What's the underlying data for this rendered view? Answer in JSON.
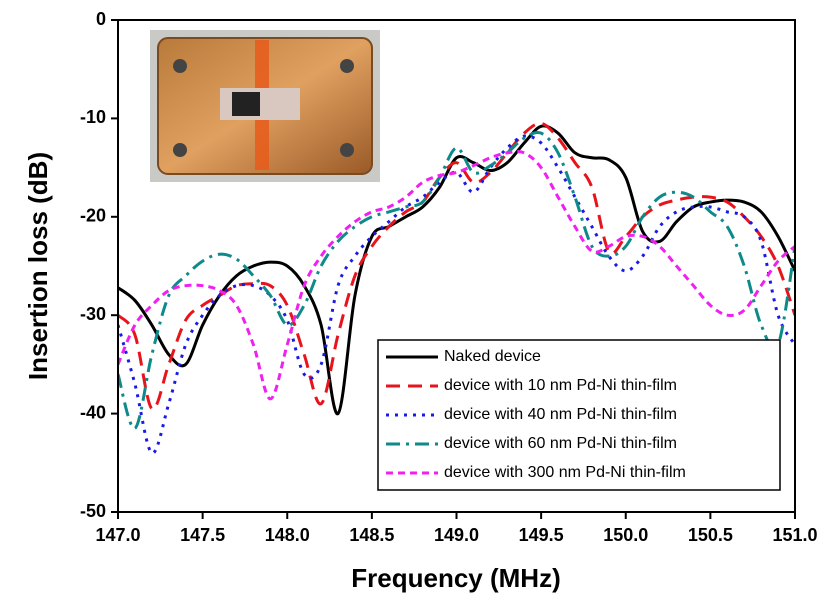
{
  "chart_data": {
    "type": "line",
    "xlabel": "Frequency (MHz)",
    "ylabel": "Insertion loss (dB)",
    "x": [
      147.0,
      147.1,
      147.2,
      147.3,
      147.4,
      147.5,
      147.6,
      147.7,
      147.8,
      147.9,
      148.0,
      148.1,
      148.2,
      148.3,
      148.4,
      148.5,
      148.6,
      148.7,
      148.8,
      148.9,
      149.0,
      149.1,
      149.2,
      149.3,
      149.4,
      149.5,
      149.6,
      149.7,
      149.8,
      149.9,
      150.0,
      150.1,
      150.2,
      150.3,
      150.4,
      150.5,
      150.6,
      150.7,
      150.8,
      150.9,
      151.0
    ],
    "series": [
      {
        "name": "Naked device",
        "color": "#000000",
        "linestyle": "solid",
        "values": [
          -27.2,
          -28.5,
          -31,
          -34,
          -35,
          -31,
          -28,
          -26,
          -25,
          -24.6,
          -25,
          -27,
          -31,
          -40,
          -28,
          -22,
          -21,
          -20,
          -19,
          -17,
          -14,
          -14.5,
          -15.3,
          -14.5,
          -12.5,
          -10.8,
          -11.5,
          -13.5,
          -14,
          -14.2,
          -16,
          -21.5,
          -22.5,
          -20.5,
          -19,
          -18.5,
          -18.3,
          -18.5,
          -19.5,
          -22,
          -25.5
        ]
      },
      {
        "name": "device with 10 nm Pd-Ni thin-film",
        "color": "#e8141c",
        "linestyle": "dash",
        "values": [
          -30,
          -32,
          -39.5,
          -35,
          -30.5,
          -29,
          -28,
          -27,
          -26.8,
          -27,
          -29,
          -34,
          -39,
          -32,
          -26,
          -23,
          -21,
          -19.5,
          -18.5,
          -16,
          -14.5,
          -16.5,
          -15.5,
          -13.5,
          -11.5,
          -10.5,
          -12,
          -14.5,
          -17,
          -23.5,
          -22,
          -20,
          -18.8,
          -18.3,
          -18,
          -18,
          -18.5,
          -20,
          -22,
          -25,
          -30
        ]
      },
      {
        "name": "device with 40 nm Pd-Ni thin-film",
        "color": "#1a1ae6",
        "linestyle": "dot",
        "values": [
          -31,
          -37,
          -44,
          -39,
          -33,
          -30,
          -28,
          -27,
          -27,
          -28,
          -30.5,
          -36,
          -35,
          -27,
          -24,
          -22,
          -20.5,
          -19,
          -18,
          -16.5,
          -15.5,
          -17.5,
          -15,
          -13,
          -11.8,
          -12.5,
          -15,
          -18,
          -21,
          -24,
          -25.5,
          -24,
          -21,
          -19.5,
          -19,
          -19,
          -19.5,
          -20,
          -22.5,
          -30,
          -33
        ]
      },
      {
        "name": "device with 60 nm Pd-Ni thin-film",
        "color": "#0e8a8a",
        "linestyle": "dashdot",
        "values": [
          -36,
          -41.5,
          -34,
          -28,
          -26,
          -24.5,
          -23.8,
          -24.3,
          -26,
          -28,
          -31,
          -29,
          -25,
          -22.5,
          -21,
          -20,
          -19.5,
          -19,
          -18.5,
          -16,
          -13,
          -15.5,
          -14.8,
          -13.5,
          -12,
          -11.5,
          -13.5,
          -18,
          -23,
          -24,
          -23,
          -20,
          -18,
          -17.5,
          -18,
          -19.5,
          -21,
          -25,
          -31,
          -33,
          -23
        ]
      },
      {
        "name": "device with 300 nm Pd-Ni thin-film",
        "color": "#f020f0",
        "linestyle": "shortdash",
        "values": [
          -35,
          -31,
          -29,
          -27.5,
          -27,
          -27,
          -27.5,
          -29,
          -33,
          -38.5,
          -33,
          -27,
          -24,
          -22,
          -20.5,
          -19.5,
          -19,
          -18,
          -16.5,
          -15.8,
          -15.5,
          -14.8,
          -14,
          -13.5,
          -13.5,
          -15,
          -18,
          -21,
          -23.5,
          -23,
          -22,
          -22,
          -23,
          -25,
          -27,
          -29,
          -30,
          -29.5,
          -27,
          -24.5,
          -23
        ]
      }
    ],
    "xlim": [
      147,
      151
    ],
    "xticks": [
      {
        "value": 147,
        "label": "147.0"
      },
      {
        "value": 147.5,
        "label": "147.5"
      },
      {
        "value": 148,
        "label": "148.0"
      },
      {
        "value": 148.5,
        "label": "148.5"
      },
      {
        "value": 149,
        "label": "149.0"
      },
      {
        "value": 149.5,
        "label": "149.5"
      },
      {
        "value": 150,
        "label": "150.0"
      },
      {
        "value": 150.5,
        "label": "150.5"
      },
      {
        "value": 151,
        "label": "151.0"
      }
    ],
    "ylim": [
      -50,
      0
    ],
    "yticks": [
      0,
      -10,
      -20,
      -30,
      -40,
      -50
    ],
    "legend": "lower right"
  }
}
